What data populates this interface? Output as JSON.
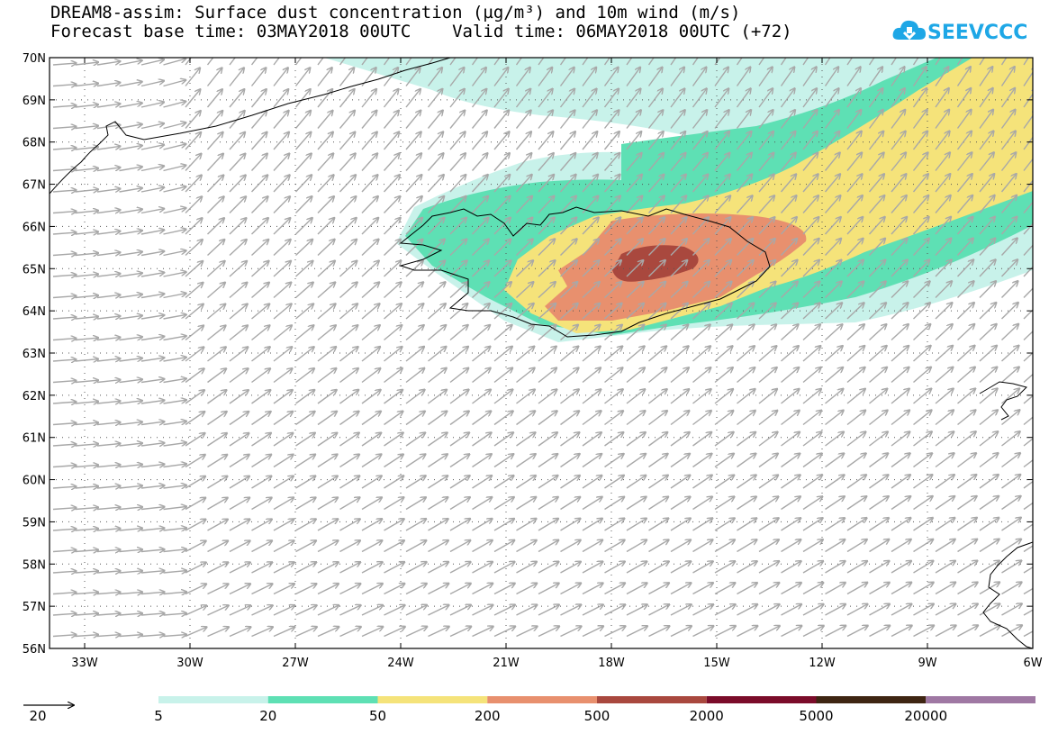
{
  "title_line1": "DREAM8-assim: Surface dust concentration (µg/m³) and 10m wind (m/s)",
  "title_line2": "Forecast base time: 03MAY2018 00UTC    Valid time: 06MAY2018 00UTC (+72)",
  "logo_text": "SEEVCCC",
  "lat_labels": [
    "70N",
    "69N",
    "68N",
    "67N",
    "66N",
    "65N",
    "64N",
    "63N",
    "62N",
    "61N",
    "60N",
    "59N",
    "58N",
    "57N",
    "56N"
  ],
  "lon_labels": [
    "33W",
    "30W",
    "27W",
    "24W",
    "21W",
    "18W",
    "15W",
    "12W",
    "9W",
    "6W"
  ],
  "vector_reference": {
    "value": "20",
    "unit": "m/s"
  },
  "colorbar": {
    "colors": [
      "#c8f2ea",
      "#5ee0b4",
      "#f5e37a",
      "#e8906e",
      "#a9483e",
      "#7b0c2a",
      "#3e2512",
      "#9f78a3"
    ],
    "labels": [
      "5",
      "20",
      "50",
      "200",
      "500",
      "2000",
      "5000",
      "20000"
    ]
  },
  "colors": {
    "wind_arrow": "#a8a8a8",
    "coastline": "#000000",
    "logo": "#1ea7e6"
  }
}
